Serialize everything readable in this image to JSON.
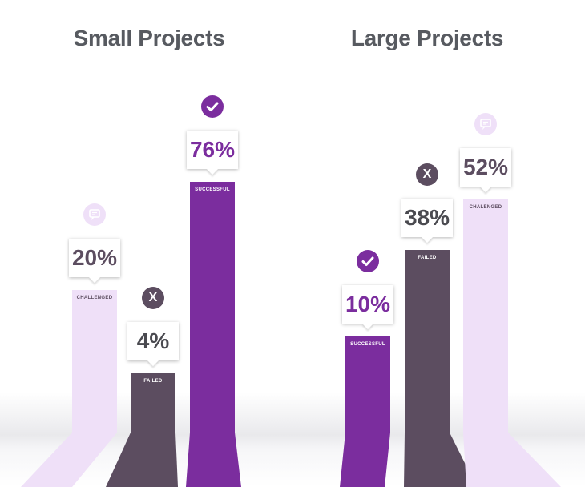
{
  "chart_data": [
    {
      "type": "bar",
      "title": "Small Projects",
      "categories": [
        "CHALLENGED",
        "FAILED",
        "SUCCESSFUL"
      ],
      "values": [
        20,
        4,
        76
      ],
      "value_labels": [
        "20%",
        "4%",
        "76%"
      ],
      "icons": [
        "chat-bubble-icon",
        "x-icon",
        "checkmark-icon"
      ],
      "colors": [
        "#efe0f8",
        "#5c4d60",
        "#7b2d9e"
      ],
      "ylim": [
        0,
        100
      ],
      "grid": false
    },
    {
      "type": "bar",
      "title": "Large Projects",
      "categories": [
        "SUCCESSFUL",
        "FAILED",
        "CHALENGED"
      ],
      "values": [
        10,
        38,
        52
      ],
      "value_labels": [
        "10%",
        "38%",
        "52%"
      ],
      "icons": [
        "checkmark-icon",
        "x-icon",
        "chat-bubble-icon"
      ],
      "colors": [
        "#7b2d9e",
        "#5c4d60",
        "#efe0f8"
      ],
      "ylim": [
        0,
        100
      ],
      "grid": false
    }
  ]
}
